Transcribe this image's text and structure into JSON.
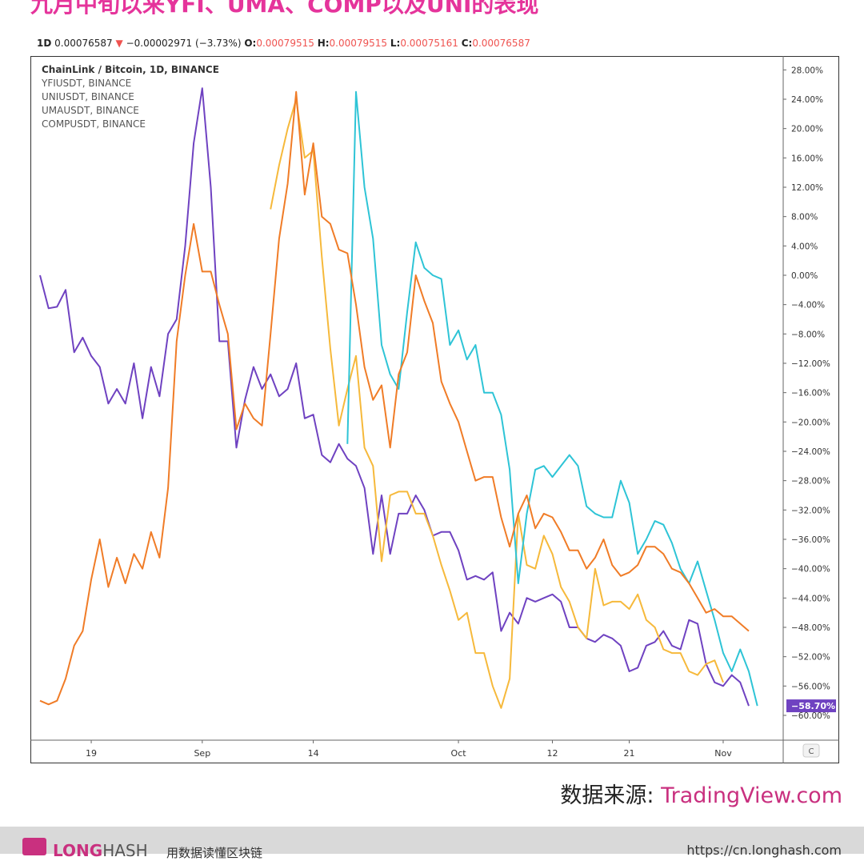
{
  "header": {
    "title": "九月中旬以来YFI、UMA、COMP以及UNI的表现"
  },
  "ohlc": {
    "interval": "1D",
    "last": "0.00076587",
    "change": "−0.00002971 (−3.73%)",
    "o_label": "O:",
    "o": "0.00079515",
    "h_label": "H:",
    "h": "0.00079515",
    "l_label": "L:",
    "l": "0.00075161",
    "c_label": "C:",
    "c": "0.00076587"
  },
  "legend": {
    "main": "ChainLink / Bitcoin, 1D, BINANCE",
    "items": [
      "YFIUSDT, BINANCE",
      "UNIUSDT, BINANCE",
      "UMAUSDT, BINANCE",
      "COMPUSDT, BINANCE"
    ]
  },
  "axis": {
    "corner_label": "C"
  },
  "source": {
    "label": "数据来源: ",
    "site": "TradingView.com"
  },
  "footer": {
    "brand_long": "LONG",
    "brand_hash": "HASH",
    "slogan": "用数据读懂区块链",
    "url": "https://cn.longhash.com"
  },
  "colors": {
    "purple": "#6f42c1",
    "orange": "#f07c27",
    "yellow": "#f6b93b",
    "cyan": "#2ec4d6",
    "last_badge": "#6f42c1"
  },
  "chart_data": {
    "type": "line",
    "x_unit": "days since Aug 13",
    "ylim": [
      -62,
      30
    ],
    "y_ticks": [
      28,
      24,
      20,
      16,
      12,
      8,
      4,
      0,
      -4,
      -8,
      -12,
      -16,
      -20,
      -24,
      -28,
      -32,
      -36,
      -40,
      -44,
      -48,
      -52,
      -56,
      -60
    ],
    "y_tick_labels": [
      "28.00%",
      "24.00%",
      "20.00%",
      "16.00%",
      "12.00%",
      "8.00%",
      "4.00%",
      "0.00%",
      "−4.00%",
      "−8.00%",
      "−12.00%",
      "−16.00%",
      "−20.00%",
      "−24.00%",
      "−28.00%",
      "−32.00%",
      "−36.00%",
      "−40.00%",
      "−44.00%",
      "−48.00%",
      "−52.00%",
      "−56.00%",
      "−60.00%"
    ],
    "x_ticks": [
      {
        "x": 6,
        "label": "19"
      },
      {
        "x": 19,
        "label": "Sep"
      },
      {
        "x": 32,
        "label": "14"
      },
      {
        "x": 49,
        "label": "Oct"
      },
      {
        "x": 60,
        "label": "12"
      },
      {
        "x": 69,
        "label": "21"
      },
      {
        "x": 80,
        "label": "Nov"
      }
    ],
    "last_value_label": "−58.70%",
    "series": [
      {
        "name": "ChainLink / Bitcoin, 1D, BINANCE",
        "color": "#6f42c1",
        "x_start": 0,
        "values": [
          0,
          -4.5,
          -4.3,
          -2,
          -10.5,
          -8.5,
          -11,
          -12.5,
          -17.5,
          -15.5,
          -17.5,
          -12,
          -19.5,
          -12.5,
          -16.5,
          -8,
          -6,
          4,
          18,
          25.5,
          12,
          -9,
          -9,
          -23.5,
          -17,
          -12.5,
          -15.5,
          -13.5,
          -16.5,
          -15.5,
          -12,
          -19.5,
          -19,
          -24.5,
          -25.5,
          -23,
          -25,
          -26,
          -29,
          -38,
          -30,
          -38,
          -32.5,
          -32.5,
          -30,
          -32,
          -35.5,
          -35,
          -35,
          -37.5,
          -41.5,
          -41,
          -41.5,
          -40.5,
          -48.5,
          -46,
          -47.5,
          -44,
          -44.5,
          -44,
          -43.5,
          -44.5,
          -48,
          -48,
          -49.5,
          -50,
          -49,
          -49.5,
          -50.5,
          -54,
          -53.5,
          -50.5,
          -50,
          -48.5,
          -50.5,
          -51,
          -47,
          -47.5,
          -53,
          -55.5,
          -56,
          -54.5,
          -55.5,
          -58.7
        ]
      },
      {
        "name": "YFIUSDT, BINANCE",
        "color": "#f07c27",
        "x_start": 0,
        "values": [
          -58,
          -58.5,
          -58,
          -55,
          -50.5,
          -48.5,
          -41.5,
          -36,
          -42.5,
          -38.5,
          -42,
          -38,
          -40,
          -35,
          -38.5,
          -29,
          -9,
          0,
          7,
          0.5,
          0.5,
          -4,
          -8,
          -21,
          -17.5,
          -19.5,
          -20.5,
          -8,
          5,
          12.5,
          25,
          11,
          18,
          8,
          7,
          3.5,
          3,
          -4,
          -12.5,
          -17,
          -15,
          -23.5,
          -13.5,
          -10.5,
          0,
          -3.5,
          -6.5,
          -14.5,
          -17.5,
          -20,
          -24,
          -28,
          -27.5,
          -27.5,
          -33,
          -37,
          -32.5,
          -30,
          -34.5,
          -32.5,
          -33,
          -35,
          -37.5,
          -37.5,
          -40,
          -38.5,
          -36,
          -39.5,
          -41,
          -40.5,
          -39.5,
          -37,
          -37,
          -38,
          -40,
          -40.5,
          -42,
          -44,
          -46,
          -45.5,
          -46.5,
          -46.5,
          -47.5,
          -48.5
        ]
      },
      {
        "name": "UMAUSDT, BINANCE",
        "color": "#f6b93b",
        "x_start": 27,
        "values": [
          9,
          15,
          20,
          24,
          16,
          17,
          2.5,
          -10,
          -20.5,
          -15.5,
          -11,
          -23.5,
          -26,
          -39,
          -30,
          -29.5,
          -29.5,
          -32.5,
          -32.5,
          -35.5,
          -39.5,
          -43,
          -47,
          -46,
          -51.5,
          -51.5,
          -56,
          -59,
          -55,
          -32.5,
          -39.5,
          -40,
          -35.5,
          -38,
          -42.5,
          -44.5,
          -48,
          -49.5,
          -40,
          -45,
          -44.5,
          -44.5,
          -45.5,
          -43.5,
          -47,
          -48,
          -51,
          -51.5,
          -51.5,
          -54,
          -54.5,
          -53,
          -52.5,
          -55.5
        ]
      },
      {
        "name": "COMPUSDT, BINANCE",
        "color": "#2ec4d6",
        "x_start": 36,
        "values": [
          -23,
          25,
          12,
          5,
          -9.5,
          -13.5,
          -15.5,
          -5,
          4.5,
          1,
          0,
          -0.5,
          -9.5,
          -7.5,
          -11.5,
          -9.5,
          -16,
          -16,
          -19,
          -26.5,
          -42,
          -32.5,
          -26.5,
          -26,
          -27.5,
          -26,
          -24.5,
          -26,
          -31.5,
          -32.5,
          -33,
          -33,
          -28,
          -31,
          -38,
          -36,
          -33.5,
          -34,
          -36.5,
          -40,
          -42,
          -39,
          -43,
          -47,
          -51.5,
          -54,
          -51,
          -54,
          -58.7
        ]
      }
    ]
  }
}
